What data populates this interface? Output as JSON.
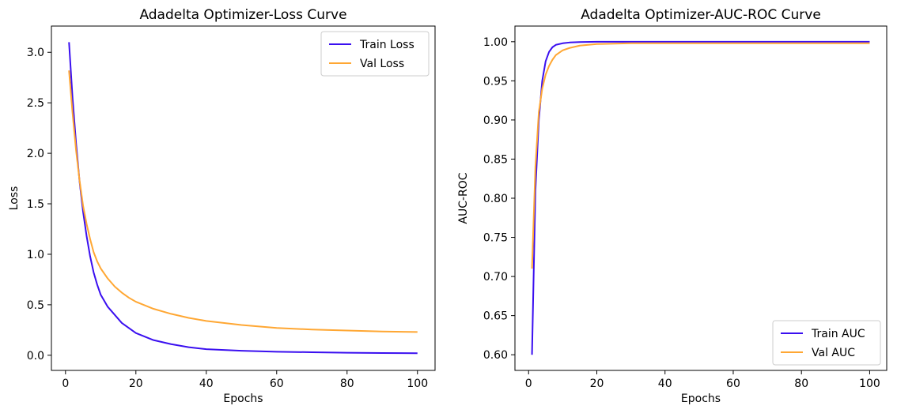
{
  "chart_data": [
    {
      "type": "line",
      "title": "Adadelta Optimizer-Loss Curve",
      "xlabel": "Epochs",
      "ylabel": "Loss",
      "xlim": [
        -4,
        105
      ],
      "ylim": [
        -0.15,
        3.26
      ],
      "xticks": [
        0,
        20,
        40,
        60,
        80,
        100
      ],
      "yticks": [
        0.0,
        0.5,
        1.0,
        1.5,
        2.0,
        2.5,
        3.0
      ],
      "ytick_labels": [
        "0.0",
        "0.5",
        "1.0",
        "1.5",
        "2.0",
        "2.5",
        "3.0"
      ],
      "legend": "upper-right",
      "series": [
        {
          "name": "Train Loss",
          "color": "#3a0ff0",
          "x": [
            1,
            2,
            3,
            4,
            5,
            6,
            7,
            8,
            9,
            10,
            12,
            14,
            16,
            18,
            20,
            25,
            30,
            35,
            40,
            50,
            60,
            70,
            80,
            90,
            100
          ],
          "y": [
            3.1,
            2.55,
            2.1,
            1.72,
            1.42,
            1.18,
            0.98,
            0.82,
            0.7,
            0.6,
            0.48,
            0.4,
            0.32,
            0.27,
            0.22,
            0.15,
            0.11,
            0.08,
            0.06,
            0.045,
            0.035,
            0.03,
            0.025,
            0.022,
            0.02
          ]
        },
        {
          "name": "Val Loss",
          "color": "#ffa733",
          "x": [
            1,
            2,
            3,
            4,
            5,
            6,
            7,
            8,
            9,
            10,
            12,
            14,
            16,
            18,
            20,
            25,
            30,
            35,
            40,
            50,
            60,
            70,
            80,
            90,
            100
          ],
          "y": [
            2.82,
            2.4,
            2.03,
            1.73,
            1.48,
            1.3,
            1.15,
            1.02,
            0.93,
            0.86,
            0.76,
            0.68,
            0.62,
            0.57,
            0.53,
            0.46,
            0.41,
            0.37,
            0.34,
            0.3,
            0.27,
            0.255,
            0.245,
            0.235,
            0.23
          ]
        }
      ]
    },
    {
      "type": "line",
      "title": "Adadelta Optimizer-AUC-ROC Curve",
      "xlabel": "Epochs",
      "ylabel": "AUC-ROC",
      "xlim": [
        -4,
        105
      ],
      "ylim": [
        0.58,
        1.02
      ],
      "xticks": [
        0,
        20,
        40,
        60,
        80,
        100
      ],
      "yticks": [
        0.6,
        0.65,
        0.7,
        0.75,
        0.8,
        0.85,
        0.9,
        0.95,
        1.0
      ],
      "ytick_labels": [
        "0.60",
        "0.65",
        "0.70",
        "0.75",
        "0.80",
        "0.85",
        "0.90",
        "0.95",
        "1.00"
      ],
      "legend": "lower-right",
      "series": [
        {
          "name": "Train AUC",
          "color": "#3a0ff0",
          "x": [
            1,
            2,
            3,
            4,
            5,
            6,
            7,
            8,
            10,
            12,
            15,
            20,
            30,
            40,
            60,
            80,
            100
          ],
          "y": [
            0.6,
            0.81,
            0.9,
            0.95,
            0.975,
            0.987,
            0.993,
            0.996,
            0.998,
            0.999,
            0.9995,
            1.0,
            1.0,
            1.0,
            1.0,
            1.0,
            1.0
          ]
        },
        {
          "name": "Val AUC",
          "color": "#ffa733",
          "x": [
            1,
            2,
            3,
            4,
            5,
            6,
            7,
            8,
            10,
            12,
            15,
            20,
            30,
            40,
            60,
            80,
            100
          ],
          "y": [
            0.71,
            0.84,
            0.91,
            0.94,
            0.958,
            0.969,
            0.977,
            0.983,
            0.989,
            0.992,
            0.995,
            0.997,
            0.998,
            0.998,
            0.998,
            0.998,
            0.998
          ]
        }
      ]
    }
  ]
}
